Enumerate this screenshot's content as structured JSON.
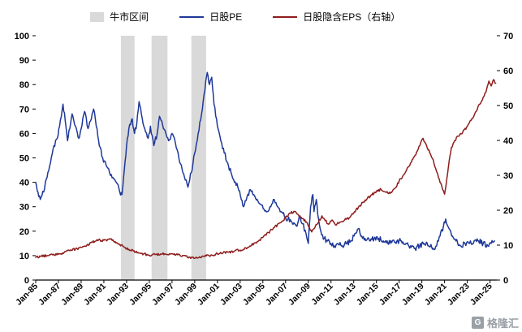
{
  "legend": {
    "bull": "牛市区间",
    "pe": "日股PE",
    "eps": "日股隐含EPS（右轴）"
  },
  "watermark": {
    "icon": "G",
    "text": "格隆汇"
  },
  "colors": {
    "pe": "#1F3899",
    "eps": "#8E1D1D",
    "band": "#D9D9D9",
    "axis": "#000000"
  },
  "chart_data": {
    "type": "line",
    "title": "",
    "xlabel": "",
    "ylabel_left": "",
    "ylabel_right": "",
    "grid": false,
    "legend_position": "top",
    "x_range": [
      1985.0,
      2025.6
    ],
    "left_axis": {
      "min": 0,
      "max": 100,
      "step": 10,
      "series": "日股PE"
    },
    "right_axis": {
      "min": 0,
      "max": 70,
      "step": 10,
      "series": "日股隐含EPS（右轴）"
    },
    "x_tick_years": [
      1985,
      1987,
      1989,
      1991,
      1993,
      1995,
      1997,
      1999,
      2001,
      2003,
      2005,
      2007,
      2009,
      2011,
      2013,
      2015,
      2017,
      2019,
      2021,
      2023,
      2025
    ],
    "x_tick_labels": [
      "Jan-85",
      "Jan-87",
      "Jan-89",
      "Jan-91",
      "Jan-93",
      "Jan-95",
      "Jan-97",
      "Jan-99",
      "Jan-01",
      "Jan-03",
      "Jan-05",
      "Jan-07",
      "Jan-09",
      "Jan-11",
      "Jan-13",
      "Jan-15",
      "Jan-17",
      "Jan-19",
      "Jan-21",
      "Jan-23",
      "Jan-25"
    ],
    "bull_market_bands": [
      [
        1992.5,
        1993.7
      ],
      [
        1995.2,
        1996.6
      ],
      [
        1998.7,
        2000.0
      ]
    ],
    "series": [
      {
        "name": "日股PE",
        "axis": "left",
        "color": "#1F3899",
        "points": [
          [
            1985.0,
            40
          ],
          [
            1985.2,
            36
          ],
          [
            1985.4,
            33
          ],
          [
            1985.7,
            36
          ],
          [
            1986.0,
            42
          ],
          [
            1986.3,
            48
          ],
          [
            1986.6,
            55
          ],
          [
            1986.9,
            58
          ],
          [
            1987.1,
            63
          ],
          [
            1987.4,
            72
          ],
          [
            1987.6,
            65
          ],
          [
            1987.8,
            57
          ],
          [
            1988.0,
            62
          ],
          [
            1988.2,
            68
          ],
          [
            1988.5,
            63
          ],
          [
            1988.8,
            58
          ],
          [
            1989.0,
            62
          ],
          [
            1989.3,
            69
          ],
          [
            1989.6,
            62
          ],
          [
            1989.9,
            66
          ],
          [
            1990.1,
            70
          ],
          [
            1990.4,
            62
          ],
          [
            1990.6,
            55
          ],
          [
            1990.9,
            50
          ],
          [
            1991.2,
            47
          ],
          [
            1991.5,
            44
          ],
          [
            1991.8,
            42
          ],
          [
            1992.1,
            40
          ],
          [
            1992.4,
            36
          ],
          [
            1992.6,
            35
          ],
          [
            1992.8,
            45
          ],
          [
            1993.0,
            55
          ],
          [
            1993.2,
            62
          ],
          [
            1993.5,
            66
          ],
          [
            1993.7,
            60
          ],
          [
            1993.9,
            64
          ],
          [
            1994.1,
            73
          ],
          [
            1994.3,
            68
          ],
          [
            1994.6,
            62
          ],
          [
            1994.9,
            58
          ],
          [
            1995.1,
            63
          ],
          [
            1995.4,
            55
          ],
          [
            1995.7,
            60
          ],
          [
            1995.9,
            67
          ],
          [
            1996.1,
            65
          ],
          [
            1996.4,
            61
          ],
          [
            1996.7,
            57
          ],
          [
            1997.0,
            60
          ],
          [
            1997.3,
            56
          ],
          [
            1997.6,
            50
          ],
          [
            1997.9,
            45
          ],
          [
            1998.1,
            42
          ],
          [
            1998.4,
            38
          ],
          [
            1998.7,
            44
          ],
          [
            1999.0,
            52
          ],
          [
            1999.3,
            60
          ],
          [
            1999.6,
            68
          ],
          [
            1999.9,
            78
          ],
          [
            2000.1,
            85
          ],
          [
            2000.3,
            80
          ],
          [
            2000.5,
            83
          ],
          [
            2000.7,
            72
          ],
          [
            2001.0,
            63
          ],
          [
            2001.3,
            57
          ],
          [
            2001.6,
            52
          ],
          [
            2001.9,
            48
          ],
          [
            2002.2,
            44
          ],
          [
            2002.5,
            40
          ],
          [
            2002.8,
            38
          ],
          [
            2003.1,
            33
          ],
          [
            2003.3,
            30
          ],
          [
            2003.6,
            34
          ],
          [
            2003.9,
            37
          ],
          [
            2004.2,
            35
          ],
          [
            2004.5,
            33
          ],
          [
            2004.8,
            31
          ],
          [
            2005.1,
            29
          ],
          [
            2005.4,
            28
          ],
          [
            2005.7,
            30
          ],
          [
            2006.0,
            33
          ],
          [
            2006.3,
            30
          ],
          [
            2006.6,
            28
          ],
          [
            2006.9,
            26
          ],
          [
            2007.2,
            25
          ],
          [
            2007.5,
            24
          ],
          [
            2007.8,
            23
          ],
          [
            2008.0,
            22
          ],
          [
            2008.2,
            26
          ],
          [
            2008.5,
            23
          ],
          [
            2008.8,
            19
          ],
          [
            2009.0,
            15
          ],
          [
            2009.2,
            30
          ],
          [
            2009.4,
            35
          ],
          [
            2009.5,
            28
          ],
          [
            2009.7,
            33
          ],
          [
            2009.9,
            25
          ],
          [
            2010.1,
            20
          ],
          [
            2010.4,
            17
          ],
          [
            2010.7,
            16
          ],
          [
            2011.0,
            15
          ],
          [
            2011.3,
            14
          ],
          [
            2011.6,
            15
          ],
          [
            2012.0,
            14
          ],
          [
            2012.4,
            15
          ],
          [
            2012.8,
            16
          ],
          [
            2013.1,
            19
          ],
          [
            2013.4,
            21
          ],
          [
            2013.7,
            18
          ],
          [
            2014.0,
            17
          ],
          [
            2014.4,
            16
          ],
          [
            2014.8,
            17
          ],
          [
            2015.2,
            17
          ],
          [
            2015.6,
            16
          ],
          [
            2016.0,
            15
          ],
          [
            2016.4,
            16
          ],
          [
            2016.8,
            16
          ],
          [
            2017.2,
            16
          ],
          [
            2017.6,
            15
          ],
          [
            2018.0,
            14
          ],
          [
            2018.4,
            13
          ],
          [
            2018.8,
            14
          ],
          [
            2019.2,
            15
          ],
          [
            2019.6,
            14
          ],
          [
            2020.0,
            13
          ],
          [
            2020.3,
            14
          ],
          [
            2020.6,
            18
          ],
          [
            2020.9,
            22
          ],
          [
            2021.1,
            25
          ],
          [
            2021.4,
            21
          ],
          [
            2021.7,
            18
          ],
          [
            2022.0,
            16
          ],
          [
            2022.4,
            14
          ],
          [
            2022.8,
            15
          ],
          [
            2023.2,
            15
          ],
          [
            2023.6,
            16
          ],
          [
            2024.0,
            16
          ],
          [
            2024.4,
            15
          ],
          [
            2024.8,
            14
          ],
          [
            2025.1,
            15
          ],
          [
            2025.4,
            16
          ]
        ]
      },
      {
        "name": "日股隐含EPS（右轴）",
        "axis": "right",
        "color": "#8E1D1D",
        "points": [
          [
            1985.0,
            6.5
          ],
          [
            1985.5,
            6.8
          ],
          [
            1986.0,
            7.0
          ],
          [
            1986.5,
            7.2
          ],
          [
            1987.0,
            7.4
          ],
          [
            1987.5,
            7.9
          ],
          [
            1988.0,
            8.4
          ],
          [
            1988.5,
            8.9
          ],
          [
            1989.0,
            9.4
          ],
          [
            1989.5,
            10.0
          ],
          [
            1990.0,
            10.8
          ],
          [
            1990.4,
            11.6
          ],
          [
            1990.8,
            11.2
          ],
          [
            1991.2,
            11.5
          ],
          [
            1991.6,
            11.7
          ],
          [
            1992.0,
            11.0
          ],
          [
            1992.4,
            10.2
          ],
          [
            1992.8,
            9.4
          ],
          [
            1993.2,
            8.8
          ],
          [
            1993.6,
            8.3
          ],
          [
            1994.0,
            7.9
          ],
          [
            1994.5,
            7.5
          ],
          [
            1995.0,
            7.1
          ],
          [
            1995.5,
            7.3
          ],
          [
            1996.0,
            7.5
          ],
          [
            1996.5,
            7.4
          ],
          [
            1997.0,
            7.5
          ],
          [
            1997.5,
            7.2
          ],
          [
            1998.0,
            7.0
          ],
          [
            1998.5,
            6.6
          ],
          [
            1999.0,
            6.2
          ],
          [
            1999.5,
            6.4
          ],
          [
            2000.0,
            6.9
          ],
          [
            2000.5,
            7.2
          ],
          [
            2001.0,
            7.5
          ],
          [
            2001.5,
            7.8
          ],
          [
            2002.0,
            8.0
          ],
          [
            2002.5,
            8.3
          ],
          [
            2003.0,
            8.6
          ],
          [
            2003.5,
            9.2
          ],
          [
            2004.0,
            10.0
          ],
          [
            2004.5,
            11.0
          ],
          [
            2005.0,
            12.2
          ],
          [
            2005.5,
            13.6
          ],
          [
            2006.0,
            15.0
          ],
          [
            2006.5,
            16.4
          ],
          [
            2007.0,
            17.8
          ],
          [
            2007.4,
            19.2
          ],
          [
            2007.8,
            19.6
          ],
          [
            2008.1,
            18.8
          ],
          [
            2008.5,
            17.6
          ],
          [
            2008.9,
            16.4
          ],
          [
            2009.1,
            15.0
          ],
          [
            2009.3,
            13.8
          ],
          [
            2009.6,
            15.2
          ],
          [
            2009.9,
            16.6
          ],
          [
            2010.2,
            18.4
          ],
          [
            2010.5,
            17.0
          ],
          [
            2010.8,
            16.0
          ],
          [
            2011.1,
            17.2
          ],
          [
            2011.4,
            15.8
          ],
          [
            2011.8,
            16.6
          ],
          [
            2012.2,
            17.2
          ],
          [
            2012.6,
            17.8
          ],
          [
            2013.0,
            19.2
          ],
          [
            2013.4,
            20.8
          ],
          [
            2013.8,
            22.2
          ],
          [
            2014.2,
            23.4
          ],
          [
            2014.6,
            24.4
          ],
          [
            2015.0,
            25.4
          ],
          [
            2015.4,
            26.0
          ],
          [
            2015.8,
            25.2
          ],
          [
            2016.2,
            24.8
          ],
          [
            2016.6,
            26.2
          ],
          [
            2017.0,
            28.4
          ],
          [
            2017.4,
            30.2
          ],
          [
            2017.8,
            32.4
          ],
          [
            2018.2,
            34.6
          ],
          [
            2018.6,
            37.0
          ],
          [
            2018.9,
            39.4
          ],
          [
            2019.1,
            40.6
          ],
          [
            2019.4,
            38.6
          ],
          [
            2019.7,
            36.4
          ],
          [
            2020.0,
            34.4
          ],
          [
            2020.3,
            31.0
          ],
          [
            2020.6,
            28.0
          ],
          [
            2020.9,
            25.6
          ],
          [
            2021.0,
            24.6
          ],
          [
            2021.2,
            29.0
          ],
          [
            2021.4,
            34.0
          ],
          [
            2021.6,
            38.0
          ],
          [
            2021.9,
            40.0
          ],
          [
            2022.2,
            41.2
          ],
          [
            2022.6,
            42.4
          ],
          [
            2023.0,
            44.0
          ],
          [
            2023.4,
            46.2
          ],
          [
            2023.8,
            48.4
          ],
          [
            2024.1,
            50.4
          ],
          [
            2024.4,
            52.4
          ],
          [
            2024.7,
            54.6
          ],
          [
            2024.9,
            57.0
          ],
          [
            2025.1,
            55.6
          ],
          [
            2025.3,
            57.4
          ],
          [
            2025.5,
            56.4
          ]
        ]
      }
    ]
  }
}
